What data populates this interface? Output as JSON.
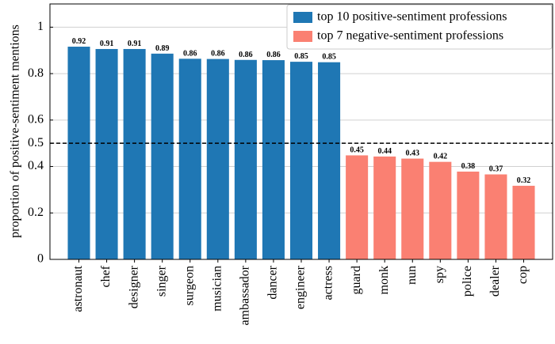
{
  "chart_data": {
    "type": "bar",
    "ylabel": "proportion of positive-sentiment mentions",
    "categories": [
      "astronaut",
      "chef",
      "designer",
      "singer",
      "surgeon",
      "musician",
      "ambassador",
      "dancer",
      "engineer",
      "actress",
      "guard",
      "monk",
      "nun",
      "spy",
      "police",
      "dealer",
      "cop"
    ],
    "series": [
      {
        "name": "top 10 positive-sentiment professions",
        "color": "#1f77b4",
        "values": [
          0.916,
          0.906,
          0.906,
          0.886,
          0.864,
          0.863,
          0.859,
          0.858,
          0.851,
          0.849,
          null,
          null,
          null,
          null,
          null,
          null,
          null
        ],
        "value_labels": [
          "0.92",
          "0.91",
          "0.91",
          "0.89",
          "0.86",
          "0.86",
          "0.86",
          "0.86",
          "0.85",
          "0.85",
          null,
          null,
          null,
          null,
          null,
          null,
          null
        ]
      },
      {
        "name": "top 7 negative-sentiment professions",
        "color": "#fa8072",
        "values": [
          null,
          null,
          null,
          null,
          null,
          null,
          null,
          null,
          null,
          null,
          0.448,
          0.443,
          0.434,
          0.42,
          0.378,
          0.366,
          0.317
        ],
        "value_labels": [
          null,
          null,
          null,
          null,
          null,
          null,
          null,
          null,
          null,
          null,
          "0.45",
          "0.44",
          "0.43",
          "0.42",
          "0.38",
          "0.37",
          "0.32"
        ]
      }
    ],
    "ylim": [
      0,
      1.1
    ],
    "yticks": [
      0,
      0.2,
      0.4,
      0.5,
      0.6,
      0.8,
      1
    ],
    "hline": 0.5,
    "grid": true,
    "legend": "upper right"
  }
}
